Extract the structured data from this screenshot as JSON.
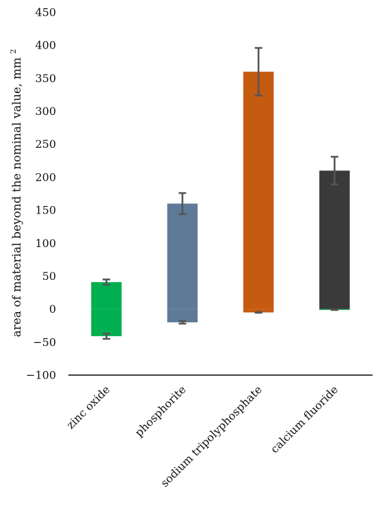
{
  "chart_data": {
    "type": "bar",
    "categories": [
      "zinc oxide",
      "phosphorite",
      "sodium tripolyphosphate",
      "calcium fluoride"
    ],
    "ylabel": "area of material beyond the nominal value, mm",
    "ylabel_superscript": "2",
    "ylim": [
      -100,
      450
    ],
    "yticks": [
      -100,
      -50,
      0,
      50,
      100,
      150,
      200,
      250,
      300,
      350,
      400,
      450
    ],
    "ytick_labels": [
      "−100",
      "−50",
      "0",
      "50",
      "100",
      "150",
      "200",
      "250",
      "300",
      "350",
      "400",
      "450"
    ],
    "grid": false,
    "legend": "none",
    "bars": [
      {
        "category": "zinc oxide",
        "top": 41,
        "bottom": -41,
        "color": "#00b050",
        "err_top": [
          37,
          45
        ],
        "err_bottom": [
          -37,
          -45
        ],
        "bottom_color": "#00b050"
      },
      {
        "category": "phosphorite",
        "top": 160,
        "bottom": -20,
        "color": "#5f7a99",
        "err_top": [
          144,
          176
        ],
        "err_bottom": [
          -18,
          -22
        ],
        "bottom_color": "#5f7a99"
      },
      {
        "category": "sodium tripolyphosphate",
        "top": 360,
        "bottom": -5,
        "color": "#c55a11",
        "err_top": [
          324,
          396
        ],
        "err_bottom": [
          -4.5,
          -5.5
        ],
        "bottom_color": "#c55a11"
      },
      {
        "category": "calcium fluoride",
        "top": 210,
        "bottom": -1,
        "color": "#3a3a3a",
        "err_top": [
          189,
          231
        ],
        "err_bottom": [
          -0.7,
          -1.3
        ],
        "bottom_color": "#00b050"
      }
    ],
    "colors": {
      "error_bar": "#555555",
      "axis": "#000000"
    }
  }
}
